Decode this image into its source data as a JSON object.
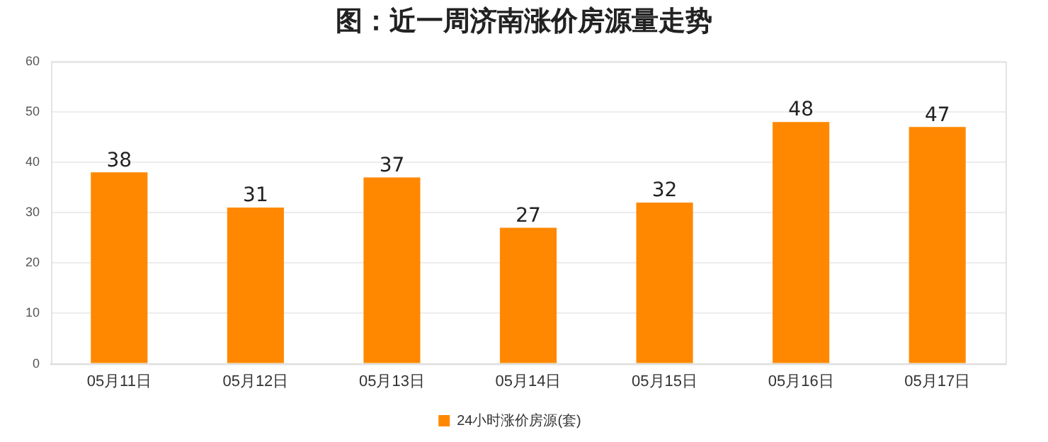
{
  "chart_data": {
    "type": "bar",
    "title": "图：近一周济南涨价房源量走势",
    "categories": [
      "05月11日",
      "05月12日",
      "05月13日",
      "05月14日",
      "05月15日",
      "05月16日",
      "05月17日"
    ],
    "series": [
      {
        "name": "24小时涨价房源(套)",
        "color": "#ff8800",
        "values": [
          38,
          31,
          37,
          27,
          32,
          48,
          47
        ]
      }
    ],
    "ylim": [
      0,
      60
    ],
    "yticks": [
      0,
      10,
      20,
      30,
      40,
      50,
      60
    ],
    "grid": "y",
    "legend": "bottom",
    "data_labels": true
  }
}
